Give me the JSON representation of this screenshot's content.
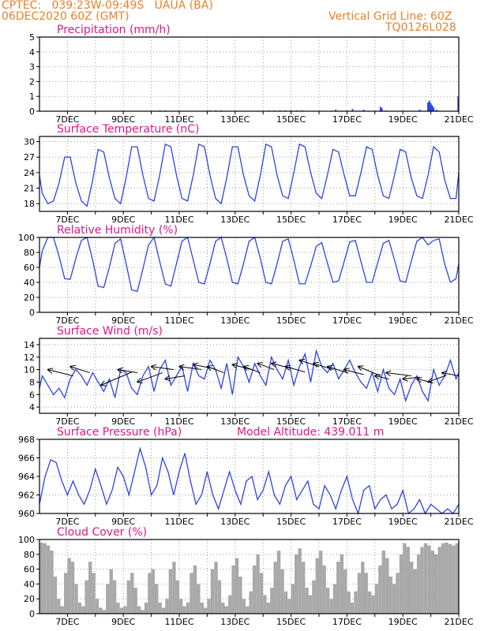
{
  "header": {
    "line1": "CPTEC:   039:23W-09:49S   UAUA (BA)",
    "line2": "06DEC2020 60Z (GMT)",
    "right1": "Vertical Grid Line: 60Z",
    "right2": "TQ0126L028"
  },
  "chart_data": [
    {
      "type": "bar",
      "title": "Precipitation (mm/h)",
      "ylim": [
        0,
        5
      ],
      "yticks": [
        "0",
        "1",
        "2",
        "3",
        "4",
        "5"
      ],
      "xticks": [
        "7DEC",
        "9DEC",
        "11DEC",
        "13DEC",
        "15DEC",
        "17DEC",
        "19DEC",
        "21DEC"
      ],
      "x": [
        10.3,
        10.5,
        12.1,
        12.3,
        12.5,
        14.2,
        14.4,
        14.6,
        14.8,
        15.0,
        15.2,
        15.4,
        16.6,
        17.2,
        17.6,
        18.2,
        18.25,
        18.4,
        19.6,
        19.9,
        19.95,
        20.0,
        20.05,
        20.1,
        20.2,
        20.98
      ],
      "values": [
        0.05,
        0.05,
        0.05,
        0.05,
        0.05,
        0.05,
        0.05,
        0.05,
        0.05,
        0.05,
        0.05,
        0.05,
        0.1,
        0.15,
        0.1,
        0.3,
        0.2,
        0.05,
        0.1,
        0.6,
        0.7,
        0.55,
        0.4,
        0.25,
        0.1,
        1.0
      ]
    },
    {
      "type": "line",
      "title": "Surface Temperature (nC)",
      "ylim": [
        16.5,
        31
      ],
      "yticks": [
        "18",
        "21",
        "24",
        "27",
        "30"
      ],
      "xticks": [
        "7DEC",
        "9DEC",
        "11DEC",
        "13DEC",
        "15DEC",
        "17DEC",
        "19DEC",
        "21DEC"
      ],
      "x": [
        6.0,
        6.1,
        6.3,
        6.5,
        6.7,
        6.9,
        7.1,
        7.3,
        7.5,
        7.7,
        7.9,
        8.1,
        8.3,
        8.5,
        8.7,
        8.9,
        9.1,
        9.3,
        9.5,
        9.7,
        9.9,
        10.1,
        10.3,
        10.5,
        10.7,
        10.9,
        11.1,
        11.3,
        11.5,
        11.7,
        11.9,
        12.1,
        12.3,
        12.5,
        12.7,
        12.9,
        13.1,
        13.3,
        13.5,
        13.7,
        13.9,
        14.1,
        14.3,
        14.5,
        14.7,
        14.9,
        15.1,
        15.3,
        15.5,
        15.7,
        15.9,
        16.1,
        16.3,
        16.5,
        16.7,
        16.9,
        17.1,
        17.3,
        17.5,
        17.7,
        17.9,
        18.1,
        18.3,
        18.5,
        18.7,
        18.9,
        19.1,
        19.3,
        19.5,
        19.7,
        19.9,
        20.1,
        20.3,
        20.5,
        20.7,
        20.9,
        21.0
      ],
      "values": [
        23.5,
        20.0,
        18.0,
        18.5,
        22.0,
        27.0,
        27.0,
        22.0,
        18.5,
        17.5,
        22.5,
        28.5,
        28.0,
        23.0,
        19.0,
        18.0,
        23.0,
        29.0,
        29.0,
        23.5,
        19.0,
        18.5,
        23.5,
        29.5,
        29.0,
        23.5,
        19.0,
        18.5,
        23.5,
        29.5,
        29.0,
        23.5,
        19.0,
        18.0,
        23.0,
        29.0,
        29.0,
        23.5,
        19.5,
        18.5,
        23.5,
        29.5,
        29.0,
        23.5,
        19.5,
        19.0,
        24.0,
        29.5,
        29.0,
        24.0,
        20.0,
        19.0,
        23.5,
        28.5,
        28.0,
        23.5,
        19.5,
        19.5,
        24.0,
        29.0,
        28.5,
        23.5,
        19.5,
        19.0,
        23.5,
        28.5,
        28.0,
        23.0,
        19.5,
        19.0,
        23.5,
        29.0,
        28.0,
        22.5,
        19.0,
        19.0,
        24.0
      ]
    },
    {
      "type": "line",
      "title": "Relative Humidity (%)",
      "ylim": [
        0,
        100
      ],
      "yticks": [
        "0",
        "20",
        "40",
        "60",
        "80",
        "100"
      ],
      "xticks": [
        "7DEC",
        "9DEC",
        "11DEC",
        "13DEC",
        "15DEC",
        "17DEC",
        "19DEC",
        "21DEC"
      ],
      "x": [
        6.0,
        6.1,
        6.3,
        6.5,
        6.7,
        6.9,
        7.1,
        7.3,
        7.5,
        7.7,
        7.9,
        8.1,
        8.3,
        8.5,
        8.7,
        8.9,
        9.1,
        9.3,
        9.5,
        9.7,
        9.9,
        10.1,
        10.3,
        10.5,
        10.7,
        10.9,
        11.1,
        11.3,
        11.5,
        11.7,
        11.9,
        12.1,
        12.3,
        12.5,
        12.7,
        12.9,
        13.1,
        13.3,
        13.5,
        13.7,
        13.9,
        14.1,
        14.3,
        14.5,
        14.7,
        14.9,
        15.1,
        15.3,
        15.5,
        15.7,
        15.9,
        16.1,
        16.3,
        16.5,
        16.7,
        16.9,
        17.1,
        17.3,
        17.5,
        17.7,
        17.9,
        18.1,
        18.3,
        18.5,
        18.7,
        18.9,
        19.1,
        19.3,
        19.5,
        19.7,
        19.9,
        20.1,
        20.3,
        20.5,
        20.7,
        20.9,
        21.0
      ],
      "values": [
        60,
        82,
        100,
        100,
        75,
        45,
        44,
        72,
        96,
        100,
        70,
        35,
        33,
        60,
        92,
        98,
        65,
        30,
        28,
        58,
        90,
        100,
        68,
        38,
        35,
        65,
        95,
        100,
        70,
        40,
        38,
        65,
        95,
        100,
        72,
        40,
        38,
        65,
        95,
        100,
        72,
        40,
        38,
        65,
        95,
        98,
        70,
        38,
        38,
        62,
        88,
        93,
        66,
        40,
        42,
        68,
        94,
        96,
        68,
        40,
        40,
        66,
        92,
        96,
        70,
        42,
        40,
        68,
        95,
        100,
        90,
        96,
        98,
        64,
        40,
        45,
        65
      ]
    },
    {
      "type": "line",
      "title": "Surface Wind (m/s)",
      "ylim": [
        3,
        15
      ],
      "yticks": [
        "4",
        "6",
        "8",
        "10",
        "12",
        "14"
      ],
      "xticks": [
        "7DEC",
        "9DEC",
        "11DEC",
        "13DEC",
        "15DEC",
        "17DEC",
        "19DEC",
        "21DEC"
      ],
      "x": [
        6.0,
        6.1,
        6.3,
        6.5,
        6.7,
        6.9,
        7.1,
        7.3,
        7.5,
        7.7,
        7.9,
        8.1,
        8.3,
        8.5,
        8.7,
        8.9,
        9.1,
        9.3,
        9.5,
        9.7,
        9.9,
        10.1,
        10.3,
        10.5,
        10.7,
        10.9,
        11.1,
        11.3,
        11.5,
        11.7,
        11.9,
        12.1,
        12.3,
        12.5,
        12.7,
        12.9,
        13.1,
        13.3,
        13.5,
        13.7,
        13.9,
        14.1,
        14.3,
        14.5,
        14.7,
        14.9,
        15.1,
        15.3,
        15.5,
        15.7,
        15.9,
        16.1,
        16.3,
        16.5,
        16.7,
        16.9,
        17.1,
        17.3,
        17.5,
        17.7,
        17.9,
        18.1,
        18.3,
        18.5,
        18.7,
        18.9,
        19.1,
        19.3,
        19.5,
        19.7,
        19.9,
        20.1,
        20.3,
        20.5,
        20.7,
        20.9,
        21.0
      ],
      "values": [
        7.0,
        9.0,
        7.5,
        6.0,
        7.0,
        5.5,
        8.5,
        10.0,
        9.0,
        7.5,
        9.5,
        8.0,
        6.5,
        8.5,
        5.5,
        10.0,
        9.5,
        7.0,
        6.0,
        9.0,
        10.5,
        6.5,
        10.0,
        11.5,
        7.5,
        9.0,
        10.5,
        6.5,
        11.0,
        9.0,
        8.5,
        11.5,
        10.0,
        7.0,
        11.0,
        6.0,
        12.0,
        10.5,
        8.0,
        11.0,
        9.0,
        7.5,
        12.0,
        10.0,
        8.5,
        11.5,
        7.5,
        10.5,
        12.5,
        8.0,
        13.0,
        10.5,
        9.5,
        11.0,
        8.5,
        10.0,
        11.5,
        9.5,
        8.0,
        7.0,
        9.5,
        6.5,
        10.0,
        7.0,
        6.0,
        8.5,
        5.0,
        7.5,
        9.0,
        6.5,
        5.0,
        10.0,
        7.5,
        9.0,
        11.5,
        8.5,
        9.5
      ],
      "vectors": [
        {
          "x": 6.3,
          "y": 10.0,
          "x2": 7.2,
          "y2": 9.0
        },
        {
          "x": 7.1,
          "y": 10.5,
          "x2": 7.8,
          "y2": 9.5
        },
        {
          "x": 8.2,
          "y": 7.5,
          "x2": 9.3,
          "y2": 9.6
        },
        {
          "x": 8.8,
          "y": 10.0,
          "x2": 9.5,
          "y2": 9.5
        },
        {
          "x": 9.5,
          "y": 8.0,
          "x2": 10.4,
          "y2": 9.5
        },
        {
          "x": 10.0,
          "y": 10.5,
          "x2": 10.8,
          "y2": 10.0
        },
        {
          "x": 10.5,
          "y": 8.5,
          "x2": 11.2,
          "y2": 9.0
        },
        {
          "x": 11.0,
          "y": 10.5,
          "x2": 11.8,
          "y2": 10.0
        },
        {
          "x": 11.5,
          "y": 10.8,
          "x2": 12.2,
          "y2": 10.2
        },
        {
          "x": 12.0,
          "y": 10.5,
          "x2": 12.6,
          "y2": 9.5
        },
        {
          "x": 12.9,
          "y": 10.8,
          "x2": 13.6,
          "y2": 10.0
        },
        {
          "x": 13.3,
          "y": 10.5,
          "x2": 13.9,
          "y2": 9.5
        },
        {
          "x": 13.8,
          "y": 11.0,
          "x2": 14.4,
          "y2": 10.0
        },
        {
          "x": 14.3,
          "y": 11.0,
          "x2": 15.0,
          "y2": 10.2
        },
        {
          "x": 14.8,
          "y": 10.5,
          "x2": 15.5,
          "y2": 9.6
        },
        {
          "x": 15.3,
          "y": 11.5,
          "x2": 16.0,
          "y2": 10.5
        },
        {
          "x": 15.8,
          "y": 11.0,
          "x2": 16.5,
          "y2": 10.0
        },
        {
          "x": 16.3,
          "y": 10.5,
          "x2": 17.0,
          "y2": 9.5
        },
        {
          "x": 16.9,
          "y": 10.0,
          "x2": 17.6,
          "y2": 9.2
        },
        {
          "x": 17.4,
          "y": 10.5,
          "x2": 18.2,
          "y2": 9.0
        },
        {
          "x": 18.0,
          "y": 9.0,
          "x2": 18.5,
          "y2": 8.5
        },
        {
          "x": 18.4,
          "y": 9.5,
          "x2": 19.3,
          "y2": 9.0
        },
        {
          "x": 19.0,
          "y": 8.5,
          "x2": 19.6,
          "y2": 8.8
        },
        {
          "x": 19.5,
          "y": 8.5,
          "x2": 20.0,
          "y2": 8.0
        },
        {
          "x": 19.9,
          "y": 8.0,
          "x2": 20.5,
          "y2": 9.0
        },
        {
          "x": 20.4,
          "y": 9.5,
          "x2": 21.0,
          "y2": 9.0
        }
      ]
    },
    {
      "type": "line",
      "title": "Surface Pressure (hPa)",
      "annotation": "Model Altitude: 439.011 m",
      "ylim": [
        960,
        968
      ],
      "yticks": [
        "960",
        "962",
        "964",
        "966",
        "968"
      ],
      "xticks": [
        "7DEC",
        "9DEC",
        "11DEC",
        "13DEC",
        "15DEC",
        "17DEC",
        "19DEC",
        "21DEC"
      ],
      "x": [
        6.0,
        6.2,
        6.4,
        6.6,
        6.8,
        7.0,
        7.2,
        7.4,
        7.6,
        7.8,
        8.0,
        8.2,
        8.4,
        8.6,
        8.8,
        9.0,
        9.2,
        9.4,
        9.6,
        9.8,
        10.0,
        10.2,
        10.4,
        10.6,
        10.8,
        11.0,
        11.2,
        11.4,
        11.6,
        11.8,
        12.0,
        12.2,
        12.4,
        12.6,
        12.8,
        13.0,
        13.2,
        13.4,
        13.6,
        13.8,
        14.0,
        14.2,
        14.4,
        14.6,
        14.8,
        15.0,
        15.2,
        15.4,
        15.6,
        15.8,
        16.0,
        16.2,
        16.4,
        16.6,
        16.8,
        17.0,
        17.2,
        17.4,
        17.6,
        17.8,
        18.0,
        18.2,
        18.4,
        18.6,
        18.8,
        19.0,
        19.2,
        19.4,
        19.6,
        19.8,
        20.0,
        20.2,
        20.4,
        20.6,
        20.8,
        21.0
      ],
      "values": [
        961.0,
        964.0,
        965.8,
        965.5,
        963.5,
        962.0,
        963.5,
        962.0,
        961.0,
        962.5,
        964.8,
        963.0,
        961.0,
        962.5,
        965.0,
        964.0,
        962.0,
        964.5,
        967.0,
        965.0,
        962.0,
        963.0,
        966.0,
        964.5,
        962.0,
        964.5,
        966.5,
        963.5,
        961.0,
        962.0,
        964.5,
        962.0,
        960.5,
        962.5,
        964.5,
        962.5,
        961.0,
        963.5,
        964.0,
        961.5,
        962.5,
        964.5,
        962.0,
        961.0,
        963.0,
        964.0,
        961.5,
        962.5,
        963.5,
        961.0,
        960.5,
        963.0,
        962.0,
        960.5,
        962.5,
        964.0,
        961.5,
        960.0,
        962.5,
        963.0,
        960.5,
        961.5,
        962.0,
        960.5,
        961.0,
        962.5,
        960.0,
        960.5,
        961.5,
        960.0,
        961.0,
        960.5,
        960.0,
        960.5,
        960.0,
        961.0
      ]
    },
    {
      "type": "bar",
      "title": "Cloud Cover (%)",
      "ylim": [
        0,
        100
      ],
      "yticks": [
        "0",
        "20",
        "40",
        "60",
        "80",
        "100"
      ],
      "xticks": [
        "7DEC",
        "9DEC",
        "11DEC",
        "13DEC",
        "15DEC",
        "17DEC",
        "19DEC",
        "21DEC"
      ],
      "x": [
        6.0,
        6.125,
        6.25,
        6.375,
        6.5,
        6.625,
        6.75,
        6.875,
        7.0,
        7.125,
        7.25,
        7.375,
        7.5,
        7.625,
        7.75,
        7.875,
        8.0,
        8.125,
        8.25,
        8.375,
        8.5,
        8.625,
        8.75,
        8.875,
        9.0,
        9.125,
        9.25,
        9.375,
        9.5,
        9.625,
        9.75,
        9.875,
        10.0,
        10.125,
        10.25,
        10.375,
        10.5,
        10.625,
        10.75,
        10.875,
        11.0,
        11.125,
        11.25,
        11.375,
        11.5,
        11.625,
        11.75,
        11.875,
        12.0,
        12.125,
        12.25,
        12.375,
        12.5,
        12.625,
        12.75,
        12.875,
        13.0,
        13.125,
        13.25,
        13.375,
        13.5,
        13.625,
        13.75,
        13.875,
        14.0,
        14.125,
        14.25,
        14.375,
        14.5,
        14.625,
        14.75,
        14.875,
        15.0,
        15.125,
        15.25,
        15.375,
        15.5,
        15.625,
        15.75,
        15.875,
        16.0,
        16.125,
        16.25,
        16.375,
        16.5,
        16.625,
        16.75,
        16.875,
        17.0,
        17.125,
        17.25,
        17.375,
        17.5,
        17.625,
        17.75,
        17.875,
        18.0,
        18.125,
        18.25,
        18.375,
        18.5,
        18.625,
        18.75,
        18.875,
        19.0,
        19.125,
        19.25,
        19.375,
        19.5,
        19.625,
        19.75,
        19.875,
        20.0,
        20.125,
        20.25,
        20.375,
        20.5,
        20.625,
        20.75,
        20.875
      ],
      "values": [
        96,
        95,
        92,
        85,
        50,
        20,
        10,
        55,
        75,
        70,
        40,
        15,
        10,
        45,
        70,
        55,
        20,
        8,
        5,
        40,
        60,
        45,
        15,
        8,
        10,
        45,
        55,
        35,
        10,
        5,
        15,
        55,
        60,
        40,
        15,
        8,
        20,
        60,
        70,
        45,
        20,
        10,
        15,
        55,
        65,
        40,
        15,
        8,
        20,
        60,
        70,
        45,
        15,
        10,
        25,
        65,
        75,
        50,
        20,
        10,
        30,
        65,
        80,
        55,
        25,
        15,
        35,
        70,
        85,
        60,
        30,
        20,
        40,
        80,
        88,
        70,
        35,
        25,
        45,
        75,
        85,
        65,
        35,
        20,
        40,
        70,
        80,
        60,
        30,
        15,
        30,
        55,
        70,
        55,
        30,
        25,
        40,
        65,
        85,
        75,
        50,
        40,
        55,
        80,
        95,
        90,
        70,
        60,
        80,
        90,
        95,
        92,
        85,
        80,
        90,
        95,
        96,
        94,
        92,
        95
      ]
    }
  ]
}
